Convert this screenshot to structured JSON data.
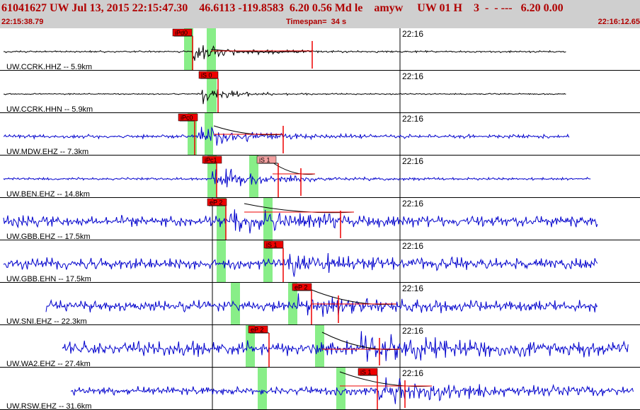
{
  "header": {
    "title": "61041627 UW Jul 13, 2015 22:15:47.30    46.6113 -119.8583  6.20 0.56 Md le    amyw     UW 01 H    3  -  - ---   6.20 0.00",
    "start_time": "22:15:38.79",
    "timespan": "Timespan=  34 s",
    "end_time": "22:16:12.65"
  },
  "colors": {
    "header_bg": "#cfcfcf",
    "header_text": "#b00000",
    "pick_fill": "#ee0000",
    "pick_fill_light": "#f4a0a0",
    "pick_window": "#88ee88",
    "trace_black": "#000000",
    "trace_blue": "#0000cc"
  },
  "traces": [
    {
      "label": "UW.CCRK.HHZ -- 5.9km",
      "time_label": "22:16",
      "color": "black",
      "picks": [
        {
          "label": "iPd0"
        }
      ]
    },
    {
      "label": "UW.CCRK.HHN -- 5.9km",
      "time_label": "22:16",
      "color": "black",
      "picks": [
        {
          "label": "iS 0"
        }
      ]
    },
    {
      "label": "UW.MDW.EHZ -- 7.3km",
      "time_label": "22:16",
      "color": "blue",
      "picks": [
        {
          "label": "iPc0"
        }
      ]
    },
    {
      "label": "UW.BEN.EHZ -- 14.8km",
      "time_label": "22:16",
      "color": "blue",
      "picks": [
        {
          "label": "iPc1"
        },
        {
          "label": "iS 1"
        }
      ]
    },
    {
      "label": "UW.GBB.EHZ -- 17.5km",
      "time_label": "22:16",
      "color": "blue",
      "picks": [
        {
          "label": "eP 2"
        }
      ]
    },
    {
      "label": "UW.GBB.EHN -- 17.5km",
      "time_label": "22:16",
      "color": "blue",
      "picks": [
        {
          "label": "iS 1"
        }
      ]
    },
    {
      "label": "UW.SNI.EHZ -- 22.3km",
      "time_label": "22:16",
      "color": "blue",
      "picks": [
        {
          "label": "eP 2"
        }
      ]
    },
    {
      "label": "UW.WA2.EHZ -- 27.4km",
      "time_label": "22:16",
      "color": "blue",
      "picks": [
        {
          "label": "eP 2"
        }
      ]
    },
    {
      "label": "UW.RSW.EHZ -- 31.6km",
      "time_label": "22:16",
      "color": "blue",
      "picks": [
        {
          "label": "iS 1"
        }
      ]
    }
  ]
}
